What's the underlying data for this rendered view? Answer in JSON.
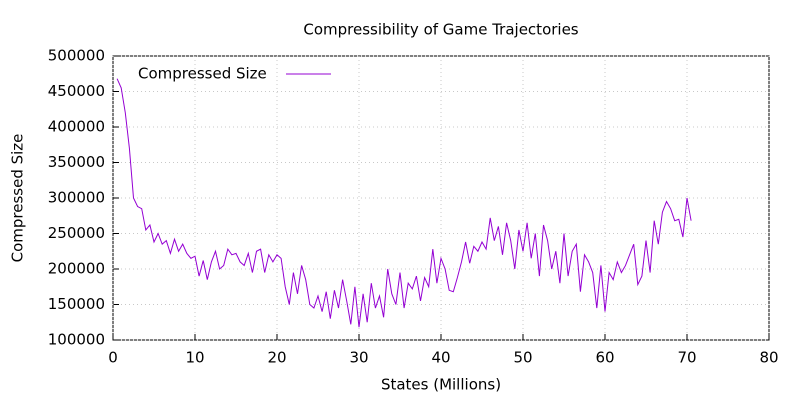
{
  "chart_data": {
    "type": "line",
    "title": "Compressibility of Game Trajectories",
    "x_label": "States (Millions)",
    "y_label": "Compressed Size",
    "xlim": [
      0,
      80
    ],
    "xticks": [
      0,
      10,
      20,
      30,
      40,
      50,
      60,
      70,
      80
    ],
    "ylim": [
      100000,
      500000
    ],
    "yticks": [
      100000,
      150000,
      200000,
      250000,
      300000,
      350000,
      400000,
      450000,
      500000
    ],
    "grid": true,
    "legend": "top-left",
    "series": [
      {
        "name": "Compressed Size",
        "color": "#9400d3",
        "x": [
          0.5,
          1,
          1.5,
          2,
          2.5,
          3,
          3.5,
          4,
          4.5,
          5,
          5.5,
          6,
          6.5,
          7,
          7.5,
          8,
          8.5,
          9,
          9.5,
          10,
          10.5,
          11,
          11.5,
          12,
          12.5,
          13,
          13.5,
          14,
          14.5,
          15,
          15.5,
          16,
          16.5,
          17,
          17.5,
          18,
          18.5,
          19,
          19.5,
          20,
          20.5,
          21,
          21.5,
          22,
          22.5,
          23,
          23.5,
          24,
          24.5,
          25,
          25.5,
          26,
          26.5,
          27,
          27.5,
          28,
          28.5,
          29,
          29.5,
          30,
          30.5,
          31,
          31.5,
          32,
          32.5,
          33,
          33.5,
          34,
          34.5,
          35,
          35.5,
          36,
          36.5,
          37,
          37.5,
          38,
          38.5,
          39,
          39.5,
          40,
          40.5,
          41,
          41.5,
          42,
          42.5,
          43,
          43.5,
          44,
          44.5,
          45,
          45.5,
          46,
          46.5,
          47,
          47.5,
          48,
          48.5,
          49,
          49.5,
          50,
          50.5,
          51,
          51.5,
          52,
          52.5,
          53,
          53.5,
          54,
          54.5,
          55,
          55.5,
          56,
          56.5,
          57,
          57.5,
          58,
          58.5,
          59,
          59.5,
          60,
          60.5,
          61,
          61.5,
          62,
          62.5,
          63,
          63.5,
          64,
          64.5,
          65,
          65.5,
          66,
          66.5,
          67,
          67.5,
          68,
          68.5,
          69,
          69.5,
          70,
          70.5
        ],
        "values": [
          468000,
          455000,
          420000,
          370000,
          300000,
          288000,
          285000,
          255000,
          262000,
          238000,
          250000,
          235000,
          240000,
          222000,
          242000,
          225000,
          235000,
          222000,
          215000,
          218000,
          190000,
          212000,
          185000,
          210000,
          225000,
          200000,
          205000,
          228000,
          220000,
          222000,
          210000,
          205000,
          222000,
          195000,
          225000,
          228000,
          195000,
          220000,
          210000,
          220000,
          215000,
          175000,
          150000,
          195000,
          165000,
          205000,
          185000,
          150000,
          145000,
          162000,
          140000,
          168000,
          130000,
          170000,
          145000,
          185000,
          155000,
          122000,
          175000,
          118000,
          165000,
          125000,
          180000,
          145000,
          162000,
          132000,
          200000,
          165000,
          150000,
          195000,
          145000,
          180000,
          172000,
          190000,
          155000,
          188000,
          175000,
          228000,
          180000,
          215000,
          200000,
          170000,
          168000,
          188000,
          210000,
          238000,
          208000,
          232000,
          225000,
          238000,
          228000,
          272000,
          240000,
          260000,
          220000,
          265000,
          240000,
          200000,
          255000,
          225000,
          265000,
          215000,
          250000,
          190000,
          262000,
          240000,
          200000,
          225000,
          180000,
          250000,
          190000,
          225000,
          235000,
          168000,
          220000,
          210000,
          195000,
          145000,
          205000,
          140000,
          195000,
          185000,
          210000,
          195000,
          205000,
          220000,
          235000,
          178000,
          190000,
          240000,
          195000,
          268000,
          235000,
          280000,
          295000,
          285000,
          268000,
          270000,
          245000,
          300000,
          268000
        ]
      }
    ]
  }
}
